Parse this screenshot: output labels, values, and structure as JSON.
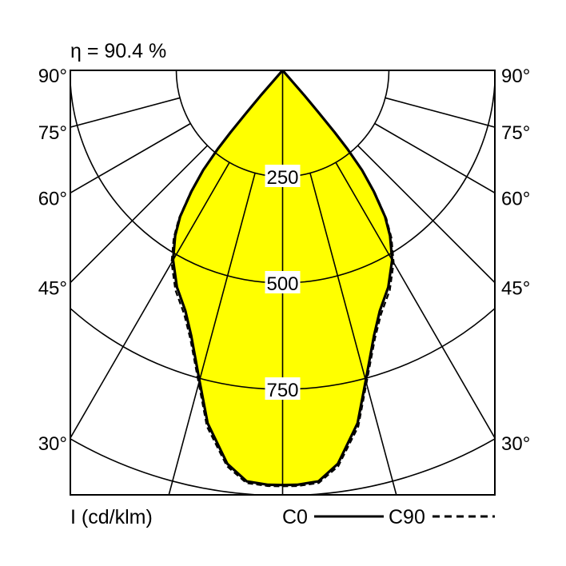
{
  "chart_data": {
    "type": "polar",
    "title": "η = 90.4 %",
    "unit_label": "I (cd/klm)",
    "radial_ticks": [
      250,
      500,
      750,
      1000
    ],
    "radial_tick_labels": [
      "250",
      "500",
      "750"
    ],
    "angle_ticks": [
      15,
      30,
      45,
      60,
      75,
      90
    ],
    "angle_labels": [
      "90°",
      "75°",
      "60°",
      "45°",
      "30°"
    ],
    "angle_label_values": [
      90,
      75,
      60,
      45,
      30
    ],
    "fill_color": "#FFFF00",
    "series": [
      {
        "name": "C0",
        "style": "solid",
        "angles": [
          0,
          2,
          5,
          8,
          12,
          15,
          19,
          22,
          26,
          30,
          33,
          35,
          37,
          38.5,
          39.5,
          40,
          40.5,
          41,
          42
        ],
        "intensities": [
          975,
          975,
          970,
          934,
          848,
          755,
          660,
          610,
          567,
          515,
          464,
          420,
          356,
          300,
          240,
          190,
          130,
          80,
          0
        ]
      },
      {
        "name": "C90",
        "style": "dashed",
        "angles": [
          0,
          2,
          5,
          8,
          12,
          15,
          19,
          22,
          26,
          30,
          33,
          35,
          37,
          38.5,
          39.5,
          40,
          40.5,
          41,
          42
        ],
        "intensities": [
          978,
          978,
          974,
          940,
          856,
          762,
          667,
          618,
          575,
          522,
          470,
          425,
          360,
          303,
          242,
          191,
          130,
          80,
          0
        ]
      }
    ],
    "legend": {
      "placement": "bottom-right",
      "entries": [
        "C0",
        "C90"
      ]
    }
  }
}
